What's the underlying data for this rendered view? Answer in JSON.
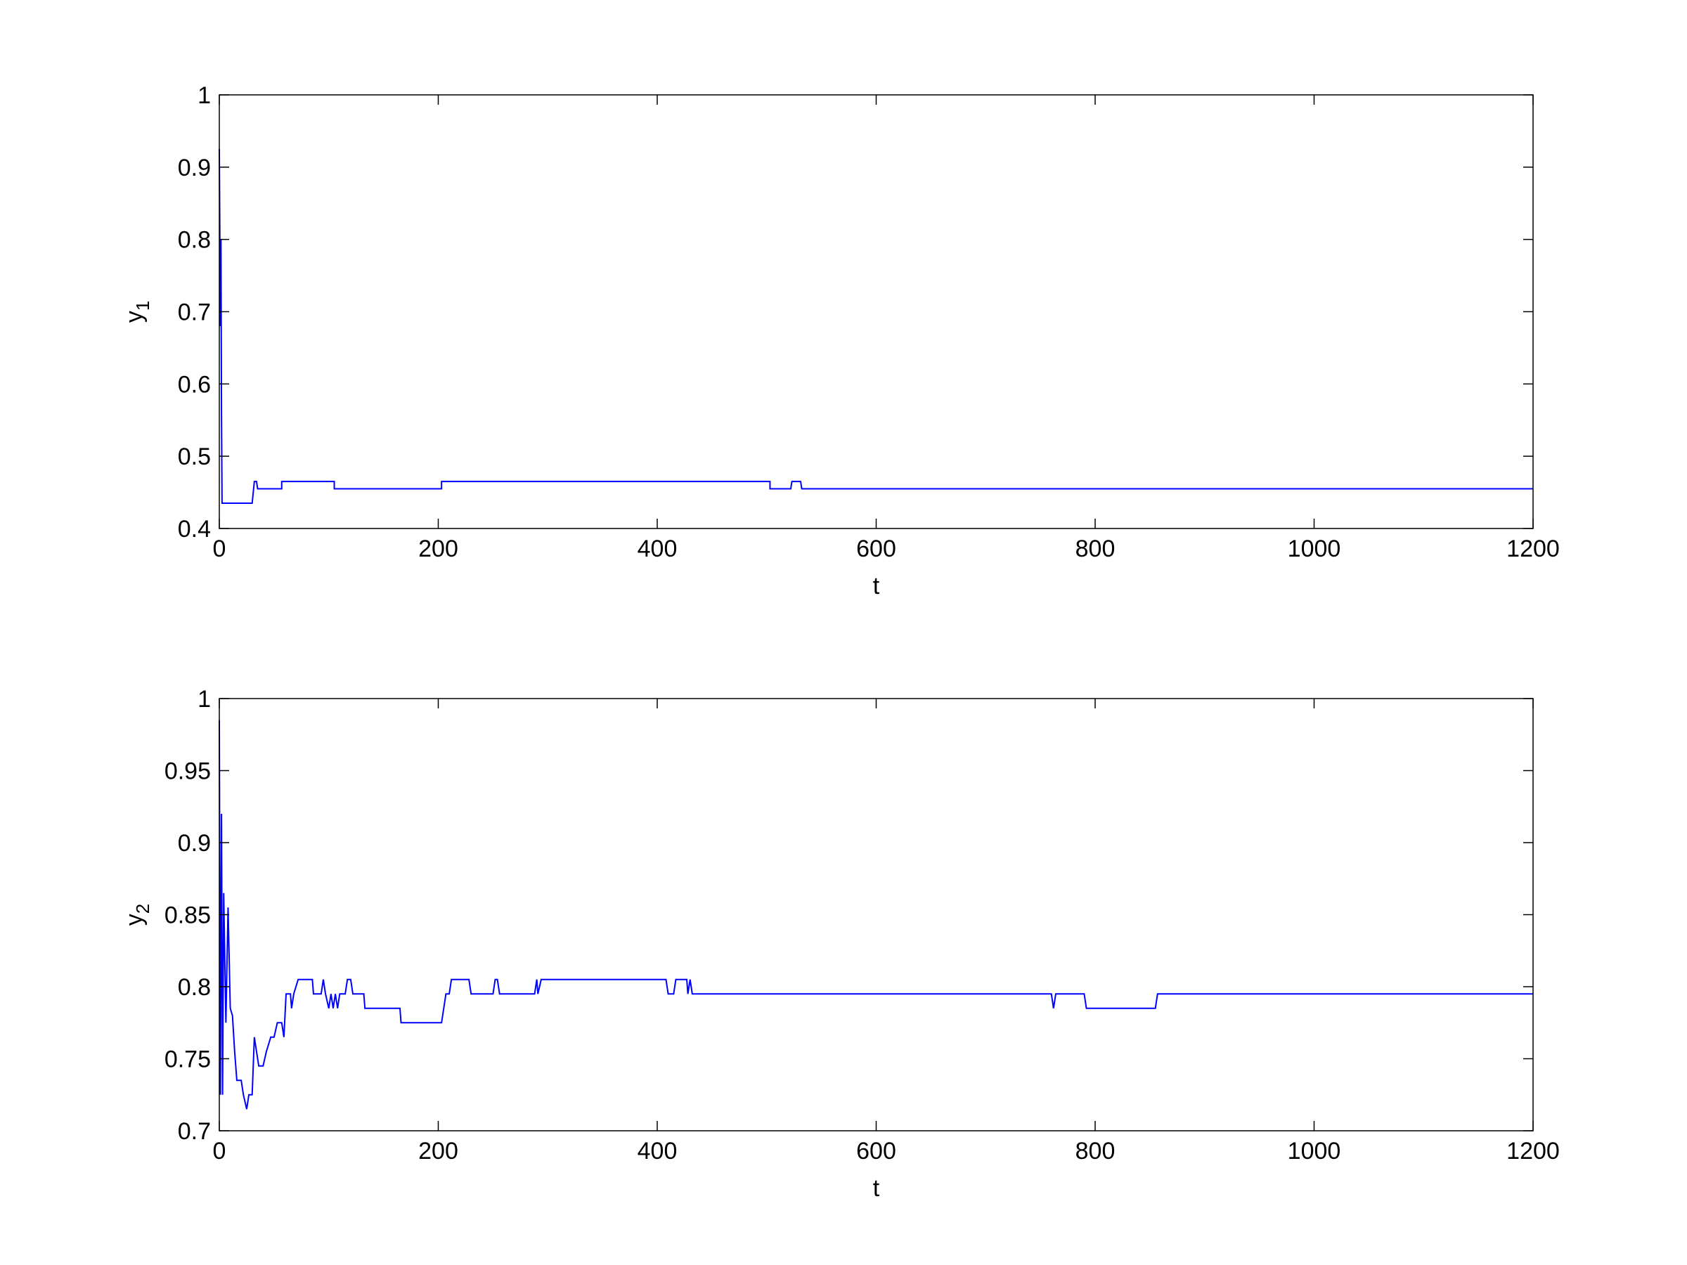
{
  "chart_data": [
    {
      "type": "line",
      "xlabel": "t",
      "ylabel": "y",
      "ylabel_sub": "1",
      "xlim": [
        0,
        1200
      ],
      "xticks": [
        0,
        200,
        400,
        600,
        800,
        1000,
        1200
      ],
      "ylim": [
        0.4,
        1
      ],
      "yticks": [
        0.4,
        0.5,
        0.6,
        0.7,
        0.8,
        0.9,
        1
      ],
      "series": [
        {
          "color": "#0000ff",
          "x": [
            0,
            1,
            1.5,
            2,
            2.5,
            3,
            30,
            32,
            34,
            35,
            57,
            57,
            105,
            105,
            203,
            203,
            503,
            503,
            522,
            523,
            531,
            532,
            1200
          ],
          "values": [
            0.925,
            0.68,
            0.8,
            0.56,
            0.435,
            0.435,
            0.435,
            0.465,
            0.465,
            0.455,
            0.455,
            0.465,
            0.465,
            0.455,
            0.455,
            0.465,
            0.465,
            0.455,
            0.455,
            0.465,
            0.465,
            0.455,
            0.455
          ]
        }
      ]
    },
    {
      "type": "line",
      "xlabel": "t",
      "ylabel": "y",
      "ylabel_sub": "2",
      "xlim": [
        0,
        1200
      ],
      "xticks": [
        0,
        200,
        400,
        600,
        800,
        1000,
        1200
      ],
      "ylim": [
        0.7,
        1
      ],
      "yticks": [
        0.7,
        0.75,
        0.8,
        0.85,
        0.9,
        0.95,
        1
      ],
      "series": [
        {
          "color": "#0000ff",
          "x": [
            0,
            1,
            2,
            3,
            4,
            6,
            8,
            10,
            12,
            14,
            16,
            20,
            22,
            25,
            27,
            30,
            32,
            34,
            36,
            40,
            43,
            47,
            50,
            53,
            57,
            59,
            61,
            65,
            66,
            68,
            72,
            85,
            86,
            93,
            95,
            97,
            100,
            102,
            104,
            106,
            108,
            110,
            115,
            117,
            120,
            122,
            132,
            133,
            165,
            166,
            203,
            207,
            210,
            212,
            228,
            230,
            250,
            252,
            254,
            256,
            288,
            290,
            291,
            294,
            408,
            410,
            415,
            417,
            427,
            428,
            430,
            432,
            760,
            762,
            764,
            790,
            792,
            855,
            857,
            1200
          ],
          "values": [
            0.985,
            0.725,
            0.92,
            0.725,
            0.865,
            0.775,
            0.855,
            0.785,
            0.78,
            0.755,
            0.735,
            0.735,
            0.725,
            0.715,
            0.725,
            0.725,
            0.765,
            0.755,
            0.745,
            0.745,
            0.755,
            0.765,
            0.765,
            0.775,
            0.775,
            0.765,
            0.795,
            0.795,
            0.785,
            0.795,
            0.805,
            0.805,
            0.795,
            0.795,
            0.805,
            0.795,
            0.785,
            0.795,
            0.785,
            0.795,
            0.785,
            0.795,
            0.795,
            0.805,
            0.805,
            0.795,
            0.795,
            0.785,
            0.785,
            0.775,
            0.775,
            0.795,
            0.795,
            0.805,
            0.805,
            0.795,
            0.795,
            0.805,
            0.805,
            0.795,
            0.795,
            0.805,
            0.795,
            0.805,
            0.805,
            0.795,
            0.795,
            0.805,
            0.805,
            0.795,
            0.805,
            0.795,
            0.795,
            0.785,
            0.795,
            0.795,
            0.785,
            0.785,
            0.795,
            0.795
          ]
        }
      ]
    }
  ]
}
